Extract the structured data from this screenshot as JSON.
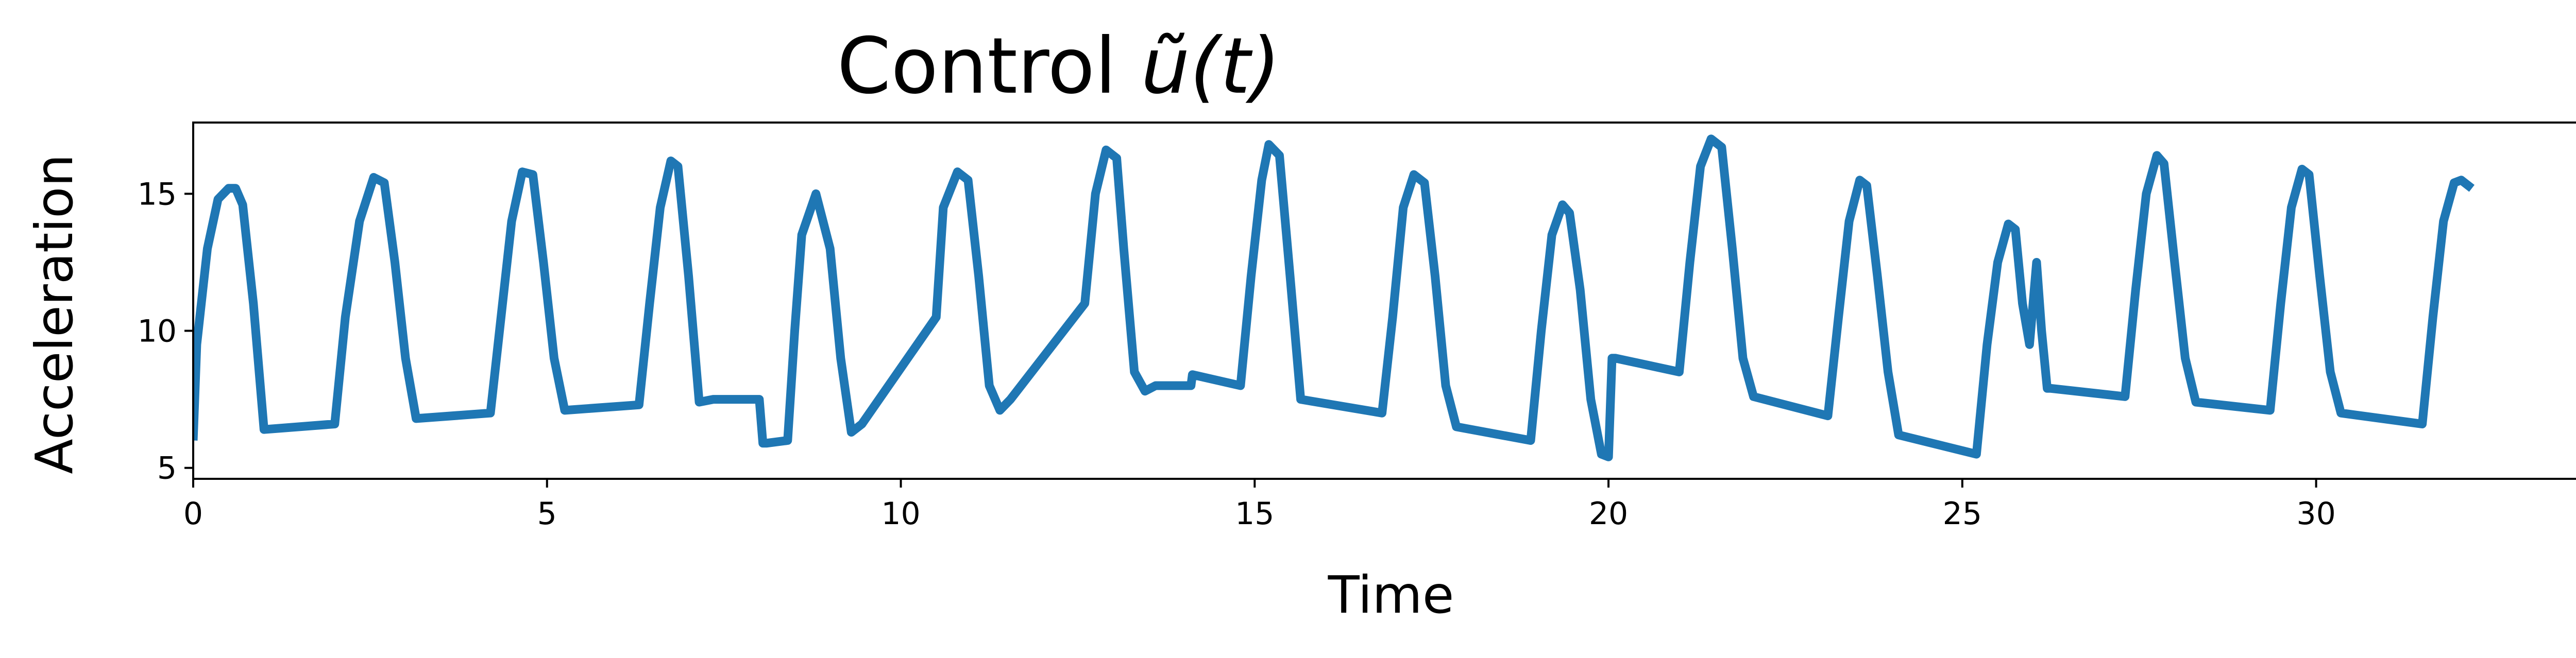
{
  "chart_data": {
    "type": "line",
    "title": "Control ",
    "title_math": "ũ(t)",
    "xlabel": "Time",
    "ylabel": "Acceleration",
    "xlim": [
      0,
      34
    ],
    "ylim": [
      4.6,
      17.6
    ],
    "xticks": [
      0,
      5,
      10,
      15,
      20,
      25,
      30
    ],
    "yticks": [
      5,
      10,
      15
    ],
    "grid": false,
    "line_color": "#1f77b4",
    "series": [
      {
        "x": [
          0,
          0.05,
          0.2,
          0.35,
          0.5,
          0.6,
          0.7,
          0.85,
          1.0,
          2.0,
          2.15,
          2.35,
          2.55,
          2.7,
          2.85,
          3.0,
          3.15,
          4.2,
          4.35,
          4.5,
          4.65,
          4.8,
          4.95,
          5.1,
          5.25,
          6.3,
          6.45,
          6.6,
          6.75,
          6.85,
          7.0,
          7.15,
          7.35,
          8.0,
          8.05,
          8.1,
          8.4,
          8.5,
          8.6,
          8.8,
          9.0,
          9.15,
          9.3,
          9.45,
          10.5,
          10.6,
          10.8,
          10.95,
          11.1,
          11.25,
          11.4,
          11.55,
          12.6,
          12.75,
          12.9,
          13.05,
          13.15,
          13.3,
          13.45,
          13.6,
          14.1,
          14.12,
          14.8,
          14.95,
          15.1,
          15.2,
          15.35,
          15.5,
          15.65,
          16.8,
          16.95,
          17.1,
          17.25,
          17.4,
          17.55,
          17.7,
          17.85,
          18.9,
          19.05,
          19.2,
          19.35,
          19.45,
          19.6,
          19.75,
          19.9,
          20.0,
          20.05,
          20.1,
          21.0,
          21.15,
          21.3,
          21.45,
          21.6,
          21.75,
          21.9,
          22.05,
          23.1,
          23.25,
          23.4,
          23.55,
          23.65,
          23.8,
          23.95,
          24.1,
          25.2,
          25.35,
          25.5,
          25.65,
          25.75,
          25.85,
          25.95,
          26.05,
          26.12,
          26.2,
          26.25,
          27.3,
          27.45,
          27.6,
          27.75,
          27.85,
          28.0,
          28.15,
          28.3,
          29.35,
          29.5,
          29.65,
          29.8,
          29.9,
          30.05,
          30.2,
          30.35,
          31.5,
          31.65,
          31.8,
          31.95,
          32.05,
          32.2
        ],
        "y": [
          6.0,
          9.5,
          13.0,
          14.8,
          15.2,
          15.2,
          14.6,
          11.0,
          6.4,
          6.6,
          10.5,
          14.0,
          15.6,
          15.4,
          12.5,
          9.0,
          6.8,
          7.0,
          10.5,
          14.0,
          15.8,
          15.7,
          12.5,
          9.0,
          7.1,
          7.3,
          11.0,
          14.5,
          16.2,
          16.0,
          12.0,
          7.4,
          7.5,
          7.5,
          5.9,
          5.9,
          6.0,
          10.0,
          13.5,
          15.0,
          13.0,
          9.0,
          6.3,
          6.6,
          10.5,
          14.5,
          15.8,
          15.5,
          12.0,
          8.0,
          7.1,
          7.5,
          11.0,
          15.0,
          16.6,
          16.3,
          13.0,
          8.5,
          7.8,
          8.0,
          8.0,
          8.4,
          8.0,
          12.0,
          15.5,
          16.8,
          16.4,
          12.0,
          7.5,
          7.0,
          10.5,
          14.5,
          15.7,
          15.4,
          12.0,
          8.0,
          6.5,
          6.0,
          10.0,
          13.5,
          14.6,
          14.3,
          11.5,
          7.5,
          5.5,
          5.4,
          9.0,
          9.0,
          8.5,
          12.5,
          16.0,
          17.0,
          16.7,
          13.0,
          9.0,
          7.6,
          6.9,
          10.5,
          14.0,
          15.5,
          15.3,
          12.0,
          8.5,
          6.2,
          5.5,
          9.5,
          12.5,
          13.9,
          13.7,
          11.0,
          9.5,
          12.5,
          10.0,
          7.9,
          7.9,
          7.6,
          11.5,
          15.0,
          16.4,
          16.1,
          12.5,
          9.0,
          7.4,
          7.1,
          11.0,
          14.5,
          15.9,
          15.7,
          12.0,
          8.5,
          7.0,
          6.6,
          10.5,
          14.0,
          15.4,
          15.5,
          15.2
        ]
      }
    ]
  }
}
